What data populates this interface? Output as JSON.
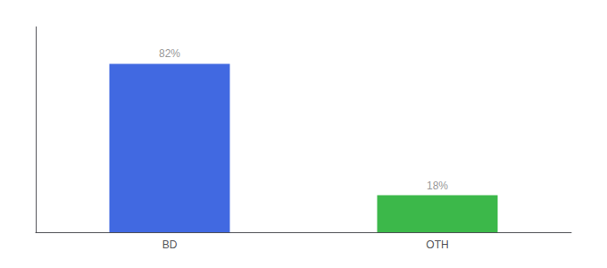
{
  "chart_data": {
    "type": "bar",
    "categories": [
      "BD",
      "OTH"
    ],
    "values": [
      82,
      18
    ],
    "value_labels": [
      "82%",
      "18%"
    ],
    "colors": [
      "#4169E1",
      "#3CB84A"
    ],
    "ylim": [
      0,
      100
    ],
    "grid": false,
    "data_labels": true,
    "tick_labels": "x"
  }
}
